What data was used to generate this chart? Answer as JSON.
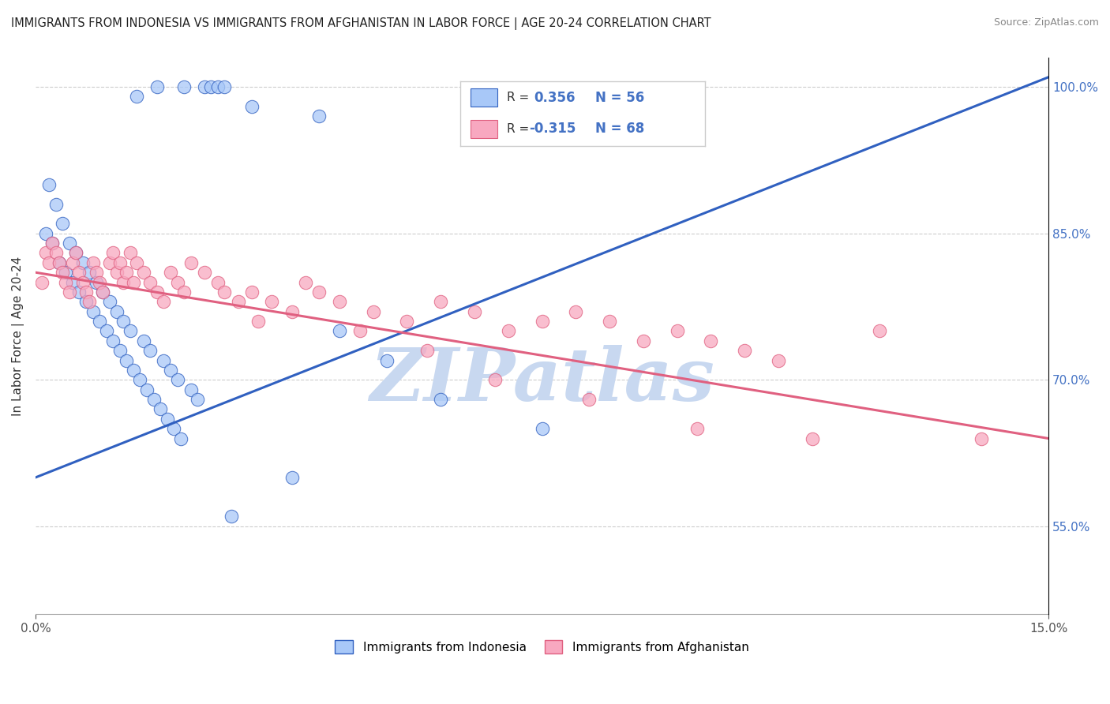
{
  "title": "IMMIGRANTS FROM INDONESIA VS IMMIGRANTS FROM AFGHANISTAN IN LABOR FORCE | AGE 20-24 CORRELATION CHART",
  "source": "Source: ZipAtlas.com",
  "ylabel": "In Labor Force | Age 20-24",
  "legend_r1": "R =  0.356",
  "legend_n1": "N = 56",
  "legend_r2": "R = -0.315",
  "legend_n2": "N = 68",
  "color_indonesia": "#a8c8f8",
  "color_afghanistan": "#f8a8c0",
  "line_color_indonesia": "#3060c0",
  "line_color_afghanistan": "#e06080",
  "watermark_text": "ZIPatlas",
  "watermark_color": "#c8d8f0",
  "xlim": [
    0.0,
    15.0
  ],
  "ylim": [
    46.0,
    103.0
  ],
  "ytick_vals": [
    55.0,
    70.0,
    85.0,
    100.0
  ],
  "ytick_labels": [
    "55.0%",
    "70.0%",
    "85.0%",
    "100.0%"
  ],
  "indonesia_scatter_x": [
    1.8,
    2.2,
    2.5,
    2.6,
    2.7,
    2.8,
    1.5,
    3.2,
    4.2,
    0.2,
    0.3,
    0.4,
    0.5,
    0.6,
    0.7,
    0.8,
    0.9,
    1.0,
    1.1,
    1.2,
    1.3,
    1.4,
    1.6,
    1.7,
    1.9,
    2.0,
    2.1,
    2.3,
    2.4,
    0.15,
    0.25,
    0.35,
    0.45,
    0.55,
    0.65,
    0.75,
    0.85,
    0.95,
    1.05,
    1.15,
    1.25,
    1.35,
    1.45,
    1.55,
    1.65,
    1.75,
    1.85,
    1.95,
    2.05,
    2.15,
    4.5,
    5.2,
    6.0,
    7.5,
    3.8,
    2.9
  ],
  "indonesia_scatter_y": [
    100,
    100,
    100,
    100,
    100,
    100,
    99,
    98,
    97,
    90,
    88,
    86,
    84,
    83,
    82,
    81,
    80,
    79,
    78,
    77,
    76,
    75,
    74,
    73,
    72,
    71,
    70,
    69,
    68,
    85,
    84,
    82,
    81,
    80,
    79,
    78,
    77,
    76,
    75,
    74,
    73,
    72,
    71,
    70,
    69,
    68,
    67,
    66,
    65,
    64,
    75,
    72,
    68,
    65,
    60,
    56
  ],
  "afghanistan_scatter_x": [
    0.1,
    0.15,
    0.2,
    0.25,
    0.3,
    0.35,
    0.4,
    0.45,
    0.5,
    0.55,
    0.6,
    0.65,
    0.7,
    0.75,
    0.8,
    0.85,
    0.9,
    0.95,
    1.0,
    1.1,
    1.2,
    1.3,
    1.4,
    1.5,
    1.6,
    1.7,
    1.8,
    1.9,
    2.0,
    2.1,
    2.2,
    2.3,
    2.5,
    2.7,
    3.0,
    3.2,
    3.5,
    3.8,
    4.0,
    4.2,
    4.5,
    5.0,
    5.5,
    6.0,
    6.5,
    7.0,
    7.5,
    8.0,
    8.5,
    9.0,
    9.5,
    10.0,
    10.5,
    11.0,
    1.15,
    1.25,
    1.35,
    1.45,
    2.8,
    3.3,
    4.8,
    5.8,
    6.8,
    8.2,
    9.8,
    11.5,
    12.5,
    14.0
  ],
  "afghanistan_scatter_y": [
    80,
    83,
    82,
    84,
    83,
    82,
    81,
    80,
    79,
    82,
    83,
    81,
    80,
    79,
    78,
    82,
    81,
    80,
    79,
    82,
    81,
    80,
    83,
    82,
    81,
    80,
    79,
    78,
    81,
    80,
    79,
    82,
    81,
    80,
    78,
    79,
    78,
    77,
    80,
    79,
    78,
    77,
    76,
    78,
    77,
    75,
    76,
    77,
    76,
    74,
    75,
    74,
    73,
    72,
    83,
    82,
    81,
    80,
    79,
    76,
    75,
    73,
    70,
    68,
    65,
    64,
    75,
    64
  ],
  "indonesia_line_x": [
    0.0,
    15.0
  ],
  "indonesia_line_y": [
    60.0,
    101.0
  ],
  "afghanistan_line_x": [
    0.0,
    15.0
  ],
  "afghanistan_line_y": [
    81.0,
    64.0
  ]
}
